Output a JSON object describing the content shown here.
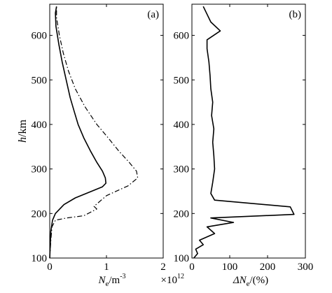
{
  "chart_data": [
    {
      "type": "line",
      "panel_label": "(a)",
      "xlabel": "N",
      "xlabel_sub": "e",
      "xlabel_unit": "/m",
      "xlabel_exp": "-3",
      "xscale_label": "×10",
      "xscale_exp": "12",
      "ylabel": "h",
      "ylabel_unit": "/km",
      "xlim": [
        0,
        2
      ],
      "ylim": [
        100,
        670
      ],
      "xticks": [
        0,
        1,
        2
      ],
      "yticks": [
        100,
        200,
        300,
        400,
        500,
        600
      ],
      "series": [
        {
          "style": "solid",
          "points": [
            [
              0.0,
              100
            ],
            [
              0.01,
              130
            ],
            [
              0.02,
              160
            ],
            [
              0.05,
              185
            ],
            [
              0.1,
              200
            ],
            [
              0.25,
              220
            ],
            [
              0.45,
              235
            ],
            [
              0.7,
              248
            ],
            [
              0.93,
              260
            ],
            [
              0.99,
              268
            ],
            [
              0.98,
              280
            ],
            [
              0.93,
              295
            ],
            [
              0.83,
              315
            ],
            [
              0.72,
              340
            ],
            [
              0.6,
              370
            ],
            [
              0.5,
              400
            ],
            [
              0.43,
              430
            ],
            [
              0.36,
              460
            ],
            [
              0.29,
              500
            ],
            [
              0.22,
              540
            ],
            [
              0.16,
              580
            ],
            [
              0.11,
              620
            ],
            [
              0.1,
              650
            ],
            [
              0.12,
              665
            ]
          ]
        },
        {
          "style": "dashdot",
          "points": [
            [
              0.0,
              100
            ],
            [
              0.02,
              140
            ],
            [
              0.04,
              170
            ],
            [
              0.1,
              185
            ],
            [
              0.3,
              190
            ],
            [
              0.6,
              195
            ],
            [
              0.83,
              210
            ],
            [
              0.78,
              216
            ],
            [
              1.0,
              240
            ],
            [
              1.38,
              262
            ],
            [
              1.55,
              280
            ],
            [
              1.53,
              295
            ],
            [
              1.4,
              315
            ],
            [
              1.22,
              340
            ],
            [
              1.03,
              370
            ],
            [
              0.83,
              400
            ],
            [
              0.62,
              440
            ],
            [
              0.45,
              480
            ],
            [
              0.33,
              520
            ],
            [
              0.24,
              560
            ],
            [
              0.17,
              600
            ],
            [
              0.12,
              640
            ],
            [
              0.12,
              665
            ]
          ]
        }
      ]
    },
    {
      "type": "line",
      "panel_label": "(b)",
      "xlabel": "ΔN",
      "xlabel_sub": "e",
      "xlabel_unit": "/(%)",
      "xlim": [
        0,
        300
      ],
      "ylim": [
        100,
        670
      ],
      "xticks": [
        0,
        100,
        200,
        300
      ],
      "yticks": [
        100,
        200,
        300,
        400,
        500,
        600
      ],
      "series": [
        {
          "style": "solid",
          "points": [
            [
              5,
              100
            ],
            [
              15,
              110
            ],
            [
              10,
              120
            ],
            [
              30,
              130
            ],
            [
              20,
              140
            ],
            [
              60,
              155
            ],
            [
              40,
              170
            ],
            [
              110,
              180
            ],
            [
              50,
              190
            ],
            [
              270,
              198
            ],
            [
              260,
              215
            ],
            [
              60,
              230
            ],
            [
              50,
              245
            ],
            [
              55,
              270
            ],
            [
              60,
              300
            ],
            [
              58,
              330
            ],
            [
              55,
              360
            ],
            [
              58,
              390
            ],
            [
              52,
              420
            ],
            [
              55,
              450
            ],
            [
              50,
              480
            ],
            [
              48,
              510
            ],
            [
              45,
              540
            ],
            [
              40,
              570
            ],
            [
              40,
              590
            ],
            [
              75,
              610
            ],
            [
              50,
              630
            ],
            [
              30,
              665
            ]
          ]
        }
      ]
    }
  ]
}
